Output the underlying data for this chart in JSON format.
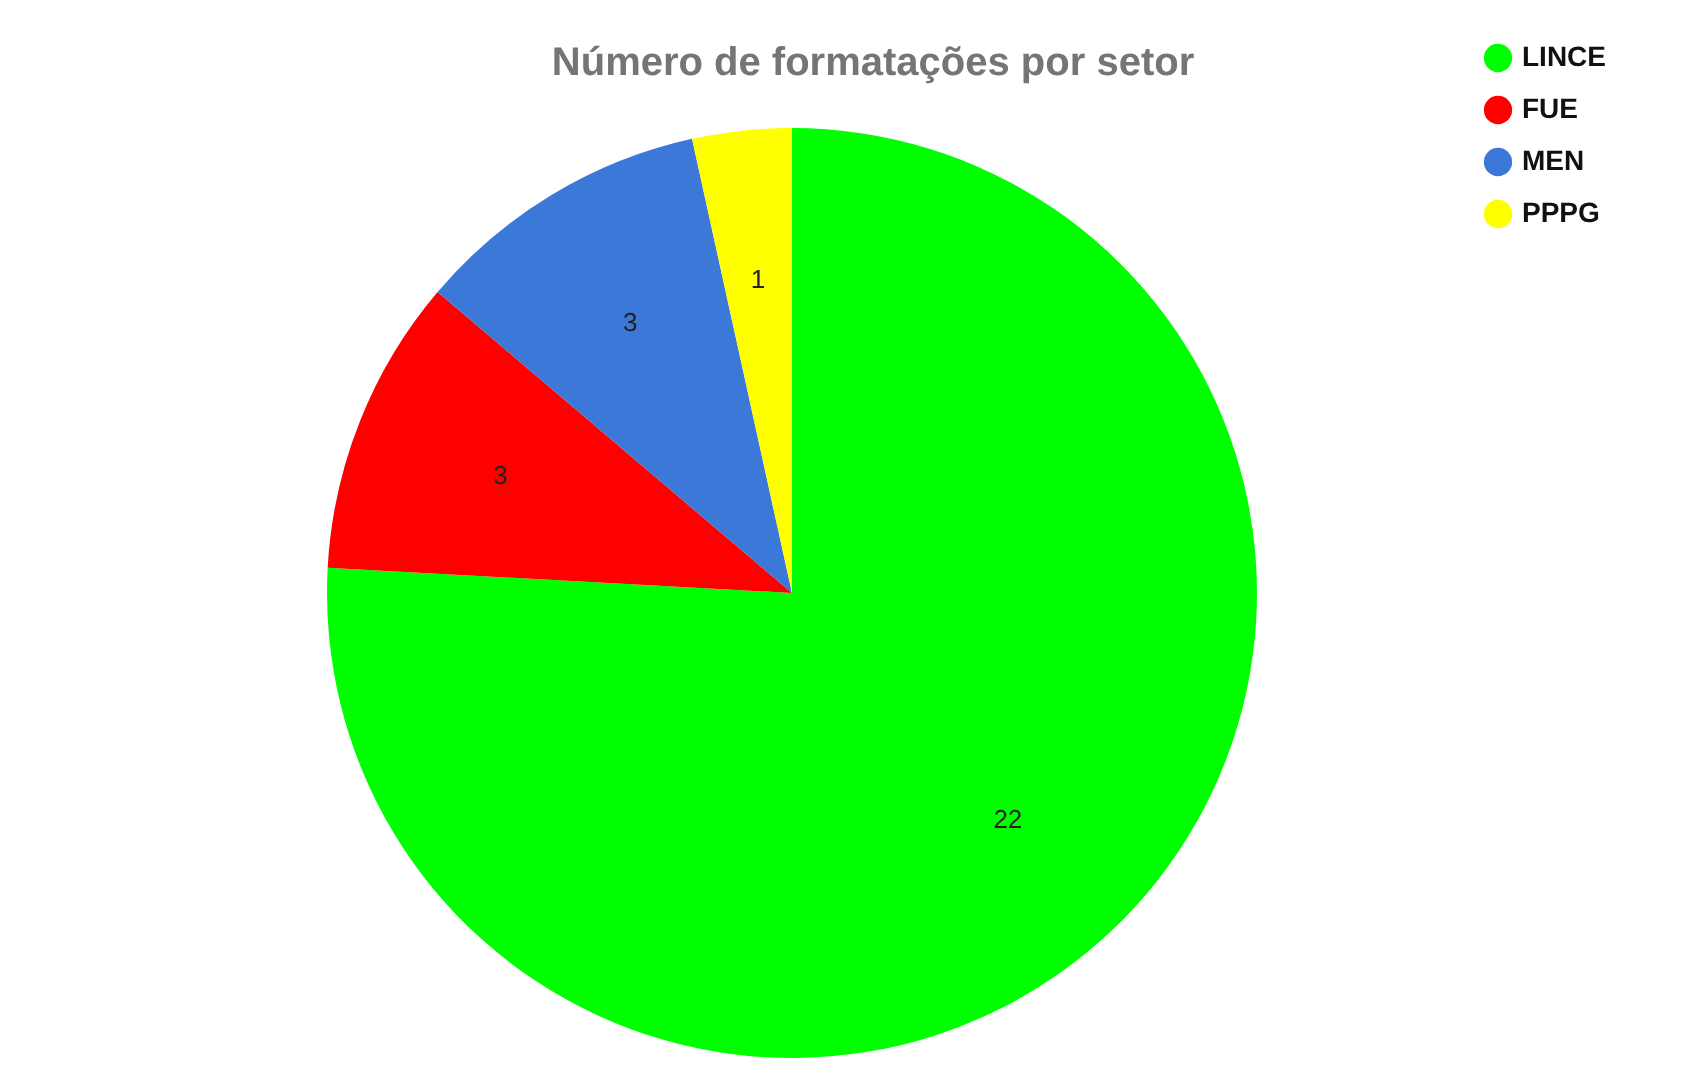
{
  "chart_data": {
    "type": "pie",
    "title": "Número de formatações por setor",
    "categories": [
      "LINCE",
      "FUE",
      "MEN",
      "PPPG"
    ],
    "values": [
      22,
      3,
      3,
      1
    ],
    "colors": [
      "#00ff00",
      "#ff0000",
      "#3c78d8",
      "#ffff00"
    ],
    "data_labels": true,
    "legend": "top right"
  }
}
